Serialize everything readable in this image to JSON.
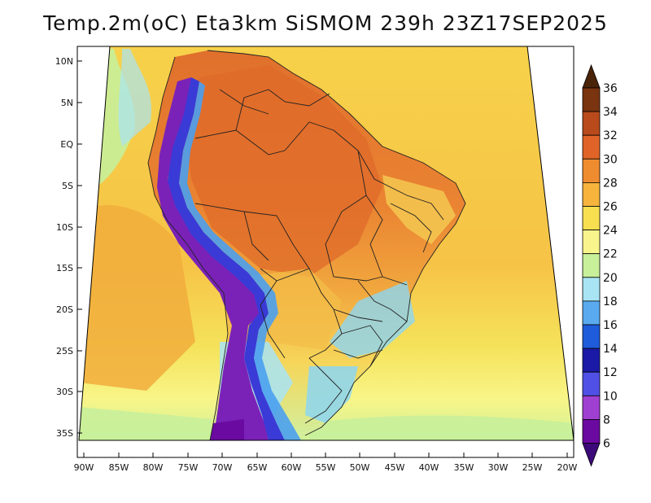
{
  "title": "Temp.2m(oC) Eta3km SiSMOM 239h 23Z17SEP2025",
  "latitude_labels": [
    "10N",
    "5N",
    "EQ",
    "5S",
    "10S",
    "15S",
    "20S",
    "25S",
    "30S",
    "35S"
  ],
  "longitude_labels": [
    "90W",
    "85W",
    "80W",
    "75W",
    "70W",
    "65W",
    "60W",
    "55W",
    "50W",
    "45W",
    "40W",
    "35W",
    "30W",
    "25W",
    "20W"
  ],
  "colorbar": {
    "labels": [
      "36",
      "34",
      "32",
      "30",
      "28",
      "26",
      "24",
      "22",
      "20",
      "18",
      "16",
      "14",
      "12",
      "10",
      "8",
      "6"
    ],
    "colors": [
      "#4a2408",
      "#7a3410",
      "#b84a1c",
      "#e06428",
      "#f08c30",
      "#f6b43c",
      "#f7df50",
      "#f8f58c",
      "#c8f09a",
      "#a8e4f4",
      "#5aaaf0",
      "#1f5cdc",
      "#1a1aa6",
      "#5050e6",
      "#a040d2",
      "#6a0aa0",
      "#3c0a78"
    ]
  },
  "map": {
    "ocean_colors": [
      "#f6c346",
      "#f5e25a",
      "#f8f588",
      "#c8f09a"
    ],
    "land_colors": [
      "#ee9a3a",
      "#e87a2e",
      "#d96a2a",
      "#f3c24a",
      "#f7e36a"
    ],
    "andes_colors": [
      "#7a22b8",
      "#3a3ad6",
      "#4aa0f0",
      "#a8e4f4"
    ]
  }
}
